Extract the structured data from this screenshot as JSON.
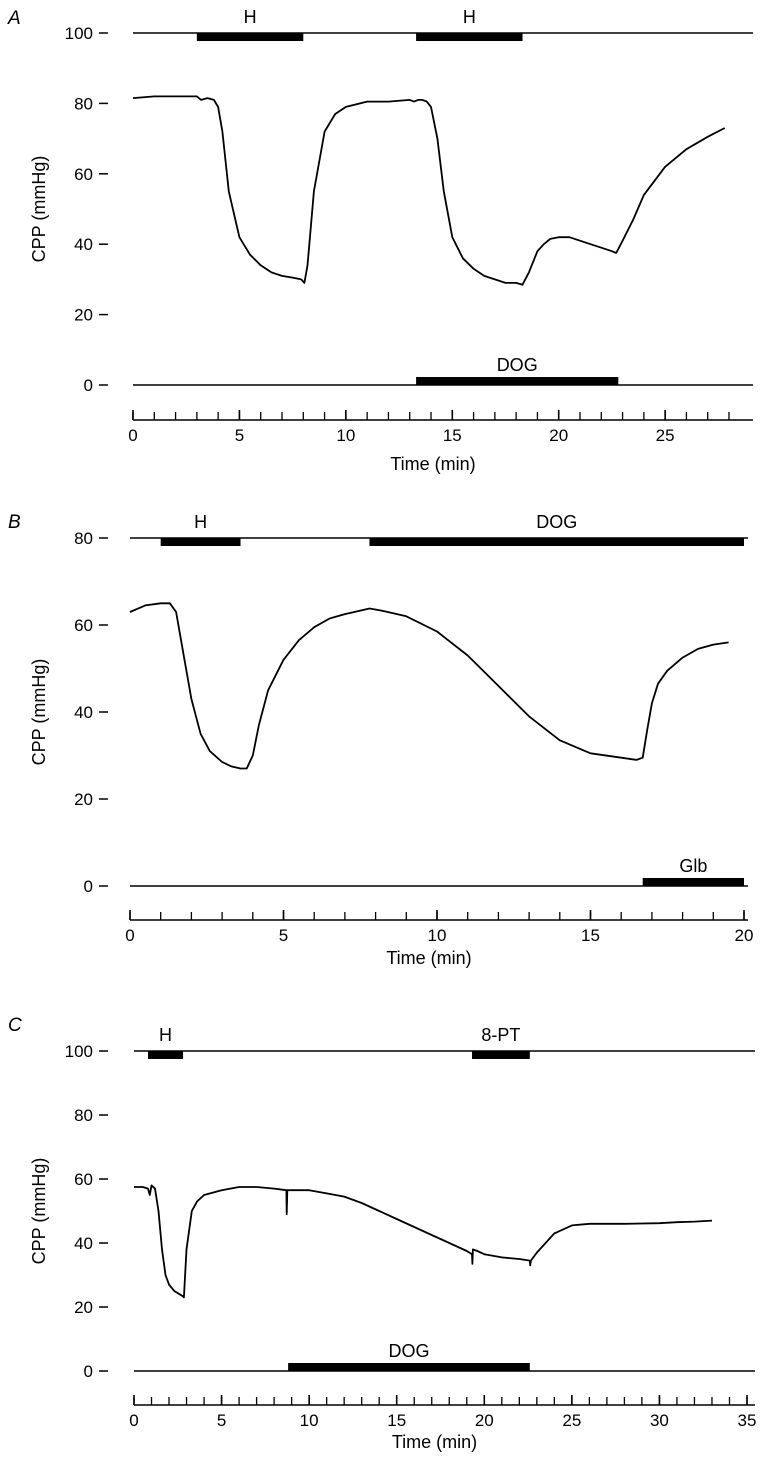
{
  "chart_data": [
    {
      "type": "line",
      "panel": "A",
      "ylabel": "CPP (mmHg)",
      "xlabel": "Time (min)",
      "xlim": [
        0,
        28
      ],
      "ylim": [
        0,
        100
      ],
      "xticks": [
        0,
        5,
        10,
        15,
        20,
        25
      ],
      "yticks": [
        0,
        20,
        40,
        60,
        80,
        100
      ],
      "minor_tick_step": 1,
      "series": [
        {
          "x": [
            0,
            1,
            2,
            3,
            3.2,
            3.5,
            3.8,
            4.0,
            4.2,
            4.5,
            5.0,
            5.5,
            6.0,
            6.5,
            7.0,
            7.5,
            7.9,
            8.05,
            8.2,
            8.5,
            9.0,
            9.5,
            10,
            11,
            12,
            13,
            13.2,
            13.4,
            13.6,
            13.8,
            14.0,
            14.3,
            14.6,
            15.0,
            15.5,
            16.0,
            16.5,
            17.0,
            17.5,
            18.0,
            18.3,
            18.6,
            19.0,
            19.3,
            19.6,
            20.0,
            20.5,
            21.0,
            21.5,
            22.0,
            22.5,
            22.7,
            23.0,
            23.5,
            24.0,
            25.0,
            26.0,
            27.0,
            27.8
          ],
          "y": [
            81.5,
            82,
            82,
            82,
            81,
            81.5,
            81,
            79,
            72,
            55,
            42,
            37,
            34,
            32,
            31,
            30.5,
            30,
            29,
            34,
            55,
            72,
            77,
            79,
            80.5,
            80.5,
            81,
            80.5,
            81,
            81,
            80.5,
            79,
            70,
            55,
            42,
            36,
            33,
            31,
            30,
            29,
            29,
            28.5,
            32,
            38,
            40,
            41.5,
            42,
            42,
            41,
            40,
            39,
            38,
            37.5,
            41,
            47,
            54,
            62,
            67,
            70.5,
            73
          ]
        }
      ],
      "bars_top": [
        {
          "label": "H",
          "start": 3.0,
          "end": 8.0
        },
        {
          "label": "H",
          "start": 13.3,
          "end": 18.3
        }
      ],
      "bars_bottom": [
        {
          "label": "DOG",
          "start": 13.3,
          "end": 22.8
        }
      ]
    },
    {
      "type": "line",
      "panel": "B",
      "ylabel": "CPP (mmHg)",
      "xlabel": "Time (min)",
      "xlim": [
        0,
        20
      ],
      "ylim": [
        0,
        80
      ],
      "xticks": [
        0,
        5,
        10,
        15,
        20
      ],
      "yticks": [
        0,
        20,
        40,
        60,
        80
      ],
      "minor_tick_step": 1,
      "series": [
        {
          "x": [
            0,
            0.5,
            1.0,
            1.3,
            1.5,
            1.7,
            2.0,
            2.3,
            2.6,
            3.0,
            3.3,
            3.6,
            3.8,
            4.0,
            4.2,
            4.5,
            5.0,
            5.5,
            6.0,
            6.5,
            7.0,
            7.5,
            7.8,
            8.2,
            9.0,
            10.0,
            11.0,
            12.0,
            13.0,
            14.0,
            15.0,
            16.0,
            16.5,
            16.7,
            16.85,
            17.0,
            17.2,
            17.5,
            18.0,
            18.5,
            19.0,
            19.5
          ],
          "y": [
            63,
            64.5,
            65,
            65,
            63,
            55,
            43,
            35,
            31,
            28.5,
            27.5,
            27,
            27,
            30,
            37,
            45,
            52,
            56.5,
            59.5,
            61.5,
            62.5,
            63.3,
            63.8,
            63.3,
            62,
            58.5,
            53,
            46,
            39,
            33.5,
            30.5,
            29.5,
            29,
            29.5,
            36,
            42,
            46.5,
            49.5,
            52.5,
            54.5,
            55.5,
            56
          ]
        }
      ],
      "bars_top": [
        {
          "label": "H",
          "start": 1.0,
          "end": 3.6
        },
        {
          "label": "DOG",
          "start": 7.8,
          "end": 20.0
        }
      ],
      "bars_bottom": [
        {
          "label": "Glb",
          "start": 16.7,
          "end": 20.0
        }
      ]
    },
    {
      "type": "line",
      "panel": "C",
      "ylabel": "CPP (mmHg)",
      "xlabel": "Time (min)",
      "xlim": [
        0,
        35
      ],
      "ylim": [
        0,
        100
      ],
      "xticks": [
        0,
        5,
        10,
        15,
        20,
        25,
        30,
        35
      ],
      "yticks": [
        0,
        20,
        40,
        60,
        80,
        100
      ],
      "minor_tick_step": 1,
      "series": [
        {
          "x": [
            0,
            0.5,
            0.8,
            0.9,
            1.0,
            1.2,
            1.4,
            1.6,
            1.8,
            2.0,
            2.3,
            2.6,
            2.75,
            2.85,
            3.0,
            3.3,
            3.6,
            4.0,
            5.0,
            6.0,
            7.0,
            8.0,
            8.7,
            8.72,
            8.75,
            9.0,
            10.0,
            11.0,
            12.0,
            13.0,
            14.0,
            15.0,
            16.0,
            17.0,
            18.0,
            19.0,
            19.3,
            19.32,
            19.35,
            19.6,
            20.0,
            21.0,
            22.0,
            22.6,
            22.62,
            22.66,
            23.0,
            23.5,
            24.0,
            25.0,
            26.0,
            27.0,
            28.0,
            30.0,
            31.0,
            32.0,
            33.0
          ],
          "y": [
            57.5,
            57.5,
            57,
            55,
            58,
            57,
            50,
            38,
            30,
            27,
            25,
            24,
            23.5,
            23,
            38,
            50,
            53,
            55,
            56.5,
            57.5,
            57.5,
            57,
            56.5,
            49,
            56.5,
            56.5,
            56.5,
            55.5,
            54.5,
            52.5,
            50,
            47.5,
            45,
            42.5,
            40,
            37.5,
            36.5,
            33.5,
            38,
            37.5,
            36.5,
            35.5,
            35,
            34.5,
            33,
            34.5,
            37,
            40,
            43,
            45.5,
            46,
            46,
            46,
            46.2,
            46.5,
            46.7,
            47
          ]
        }
      ],
      "bars_top": [
        {
          "label": "H",
          "start": 0.8,
          "end": 2.8
        },
        {
          "label": "8-PT",
          "start": 19.3,
          "end": 22.6
        }
      ],
      "bars_bottom": [
        {
          "label": "DOG",
          "start": 8.8,
          "end": 22.6
        }
      ]
    }
  ]
}
